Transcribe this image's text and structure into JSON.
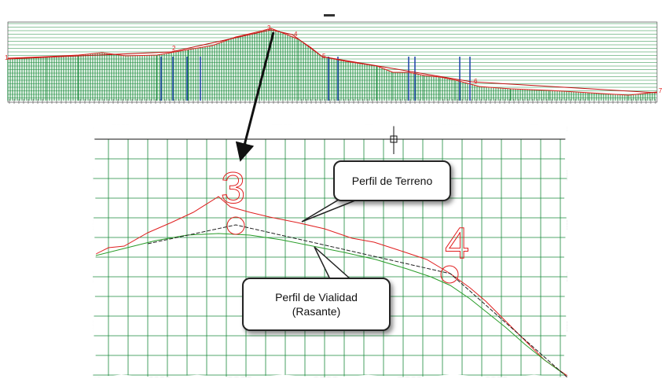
{
  "overview": {
    "title_label": "",
    "vertex_labels": [
      "1",
      "2",
      "3",
      "4",
      "5",
      "6",
      "7"
    ]
  },
  "detail": {
    "vertex_left": "3",
    "vertex_right": "4"
  },
  "callouts": {
    "terreno": "Perfil de Terreno",
    "vialidad_line1": "Perfil de Vialidad",
    "vialidad_line2": "(Rasante)"
  },
  "colors": {
    "grid_green": "#1a8a3c",
    "terrain_red": "#e02020",
    "road_green": "#2a9d2a",
    "fill_blue": "#1b3fa8"
  }
}
